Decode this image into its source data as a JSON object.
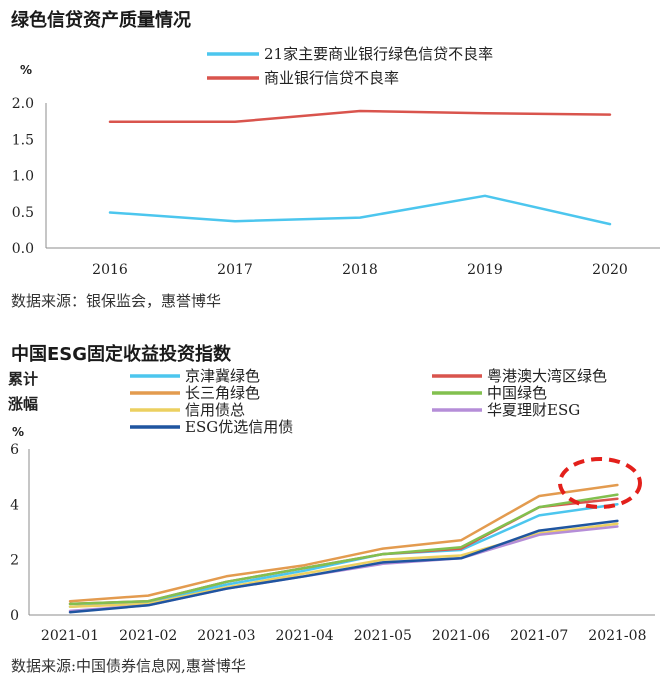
{
  "chart_data": [
    {
      "type": "line",
      "title": "绿色信贷资产质量情况",
      "unit_label": "%",
      "categories": [
        "2016",
        "2017",
        "2018",
        "2019",
        "2020"
      ],
      "ylim": [
        0,
        2.0
      ],
      "yticks": [
        "0.0",
        "0.5",
        "1.0",
        "1.5",
        "2.0"
      ],
      "grid": false,
      "legend": "top",
      "series": [
        {
          "name": "21家主要商业银行绿色信贷不良率",
          "color": "#4cc6ee",
          "values": [
            0.49,
            0.37,
            0.42,
            0.72,
            0.33
          ]
        },
        {
          "name": "商业银行信贷不良率",
          "color": "#d9544d",
          "values": [
            1.74,
            1.74,
            1.89,
            1.86,
            1.84
          ]
        }
      ],
      "source": "数据来源：银保监会，惠誉博华"
    },
    {
      "type": "line",
      "title": "中国ESG固定收益投资指数",
      "ylabel_lines": [
        "累计",
        "涨幅"
      ],
      "unit_label": "%",
      "categories": [
        "2021-01",
        "2021-02",
        "2021-03",
        "2021-04",
        "2021-05",
        "2021-06",
        "2021-07",
        "2021-08"
      ],
      "ylim": [
        0,
        6
      ],
      "yticks": [
        "0",
        "2",
        "4",
        "6"
      ],
      "grid": false,
      "legend": "top",
      "series": [
        {
          "name": "京津冀绿色",
          "color": "#4cc6ee",
          "values": [
            0.3,
            0.45,
            1.1,
            1.6,
            2.2,
            2.35,
            3.6,
            4.0
          ]
        },
        {
          "name": "粤港澳大湾区绿色",
          "color": "#d9544d",
          "values": [
            0.4,
            0.5,
            1.2,
            1.7,
            2.2,
            2.4,
            3.9,
            4.2
          ]
        },
        {
          "name": "长三角绿色",
          "color": "#e39b4f",
          "values": [
            0.5,
            0.7,
            1.4,
            1.8,
            2.4,
            2.7,
            4.3,
            4.7
          ]
        },
        {
          "name": "中国绿色",
          "color": "#82c04f",
          "values": [
            0.4,
            0.5,
            1.2,
            1.7,
            2.2,
            2.45,
            3.9,
            4.35
          ]
        },
        {
          "name": "信用债总",
          "color": "#ecd060",
          "values": [
            0.3,
            0.4,
            1.0,
            1.5,
            2.0,
            2.15,
            2.95,
            3.3
          ]
        },
        {
          "name": "华夏理财ESG",
          "color": "#b58ed8",
          "values": [
            0.15,
            0.35,
            0.95,
            1.4,
            1.85,
            2.05,
            2.9,
            3.2
          ]
        },
        {
          "name": "ESG优选信用债",
          "color": "#1f55a0",
          "values": [
            0.1,
            0.35,
            0.95,
            1.4,
            1.9,
            2.05,
            3.05,
            3.4
          ]
        }
      ],
      "annotation": "dashed-ellipse-highlight",
      "source": "数据来源:中国债券信息网,惠誉博华"
    }
  ]
}
